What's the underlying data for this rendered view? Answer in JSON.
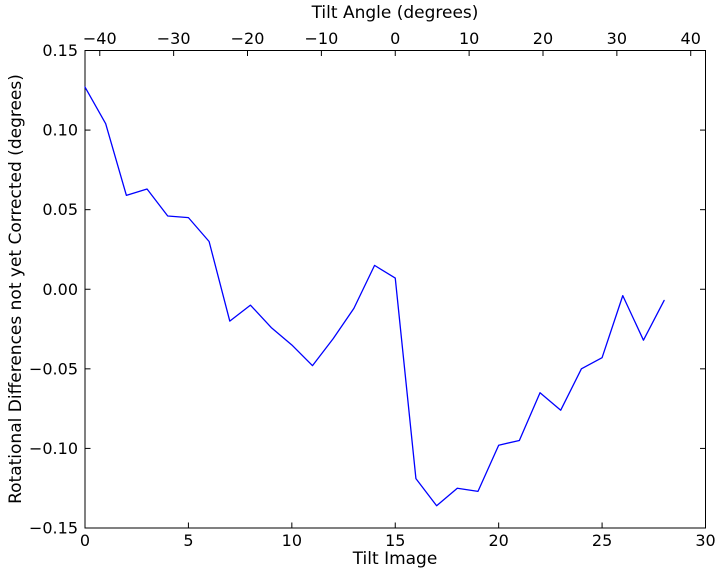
{
  "figure": {
    "background": "#ffffff",
    "axis_color": "#000000",
    "line_color": "#0000ff"
  },
  "chart_data": {
    "type": "line",
    "title": "",
    "xlabel": "Tilt Image",
    "top_xlabel": "Tilt Angle (degrees)",
    "ylabel": "Rotational Differences not yet Corrected (degrees)",
    "grid": false,
    "legend": null,
    "xlim": [
      0,
      30
    ],
    "ylim": [
      -0.15,
      0.15
    ],
    "top_xlim": [
      -42,
      42
    ],
    "x": [
      0,
      1,
      2,
      3,
      4,
      5,
      6,
      7,
      8,
      9,
      10,
      11,
      12,
      13,
      14,
      15,
      16,
      17,
      18,
      19,
      20,
      21,
      22,
      23,
      24,
      25,
      26,
      27,
      28
    ],
    "y": [
      0.127,
      0.104,
      0.059,
      0.063,
      0.046,
      0.045,
      0.03,
      -0.02,
      -0.01,
      -0.024,
      -0.035,
      -0.048,
      -0.031,
      -0.012,
      0.015,
      0.007,
      -0.119,
      -0.136,
      -0.125,
      -0.127,
      -0.098,
      -0.095,
      -0.065,
      -0.076,
      -0.05,
      -0.043,
      -0.004,
      -0.032,
      -0.007
    ],
    "xticks": {
      "values": [
        0,
        5,
        10,
        15,
        20,
        25,
        30
      ],
      "labels": [
        "0",
        "5",
        "10",
        "15",
        "20",
        "25",
        "30"
      ]
    },
    "yticks": {
      "values": [
        0.15,
        0.1,
        0.05,
        0.0,
        -0.05,
        -0.1,
        -0.15
      ],
      "labels": [
        "0.15",
        "0.10",
        "0.05",
        "0.00",
        "−0.05",
        "−0.10",
        "−0.15"
      ]
    },
    "top_xticks": {
      "values": [
        -40,
        -30,
        -20,
        -10,
        0,
        10,
        20,
        30,
        40
      ],
      "labels": [
        "−40",
        "−30",
        "−20",
        "−10",
        "0",
        "10",
        "20",
        "30",
        "40"
      ]
    }
  }
}
